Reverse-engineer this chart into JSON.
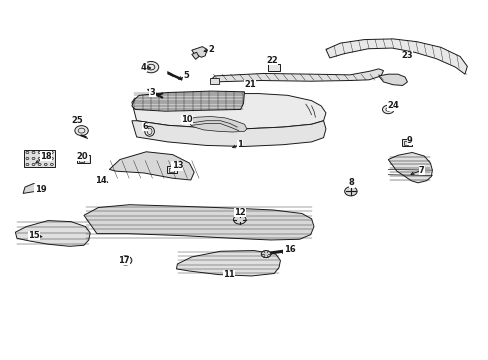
{
  "bg_color": "#ffffff",
  "line_color": "#1a1a1a",
  "labels": {
    "1": [
      0.49,
      0.6,
      0.468,
      0.588
    ],
    "2": [
      0.43,
      0.87,
      0.408,
      0.862
    ],
    "3": [
      0.308,
      0.748,
      0.322,
      0.737
    ],
    "4": [
      0.29,
      0.82,
      0.312,
      0.816
    ],
    "5": [
      0.378,
      0.795,
      0.355,
      0.782
    ],
    "6": [
      0.293,
      0.652,
      0.3,
      0.638
    ],
    "7": [
      0.87,
      0.528,
      0.84,
      0.512
    ],
    "8": [
      0.724,
      0.492,
      0.722,
      0.478
    ],
    "9": [
      0.845,
      0.612,
      0.836,
      0.6
    ],
    "10": [
      0.38,
      0.672,
      0.388,
      0.656
    ],
    "11": [
      0.468,
      0.232,
      0.472,
      0.248
    ],
    "12": [
      0.49,
      0.408,
      0.49,
      0.395
    ],
    "13": [
      0.36,
      0.54,
      0.35,
      0.526
    ],
    "14": [
      0.2,
      0.5,
      0.222,
      0.49
    ],
    "15": [
      0.06,
      0.342,
      0.085,
      0.338
    ],
    "16": [
      0.594,
      0.302,
      0.572,
      0.288
    ],
    "17": [
      0.248,
      0.272,
      0.252,
      0.282
    ],
    "18": [
      0.086,
      0.568,
      0.058,
      0.542
    ],
    "19": [
      0.074,
      0.474,
      0.06,
      0.46
    ],
    "20": [
      0.162,
      0.568,
      0.164,
      0.554
    ],
    "21": [
      0.512,
      0.77,
      0.525,
      0.76
    ],
    "22": [
      0.558,
      0.84,
      0.56,
      0.826
    ],
    "23": [
      0.84,
      0.852,
      0.832,
      0.838
    ],
    "24": [
      0.81,
      0.71,
      0.796,
      0.7
    ],
    "25": [
      0.152,
      0.67,
      0.158,
      0.656
    ]
  }
}
